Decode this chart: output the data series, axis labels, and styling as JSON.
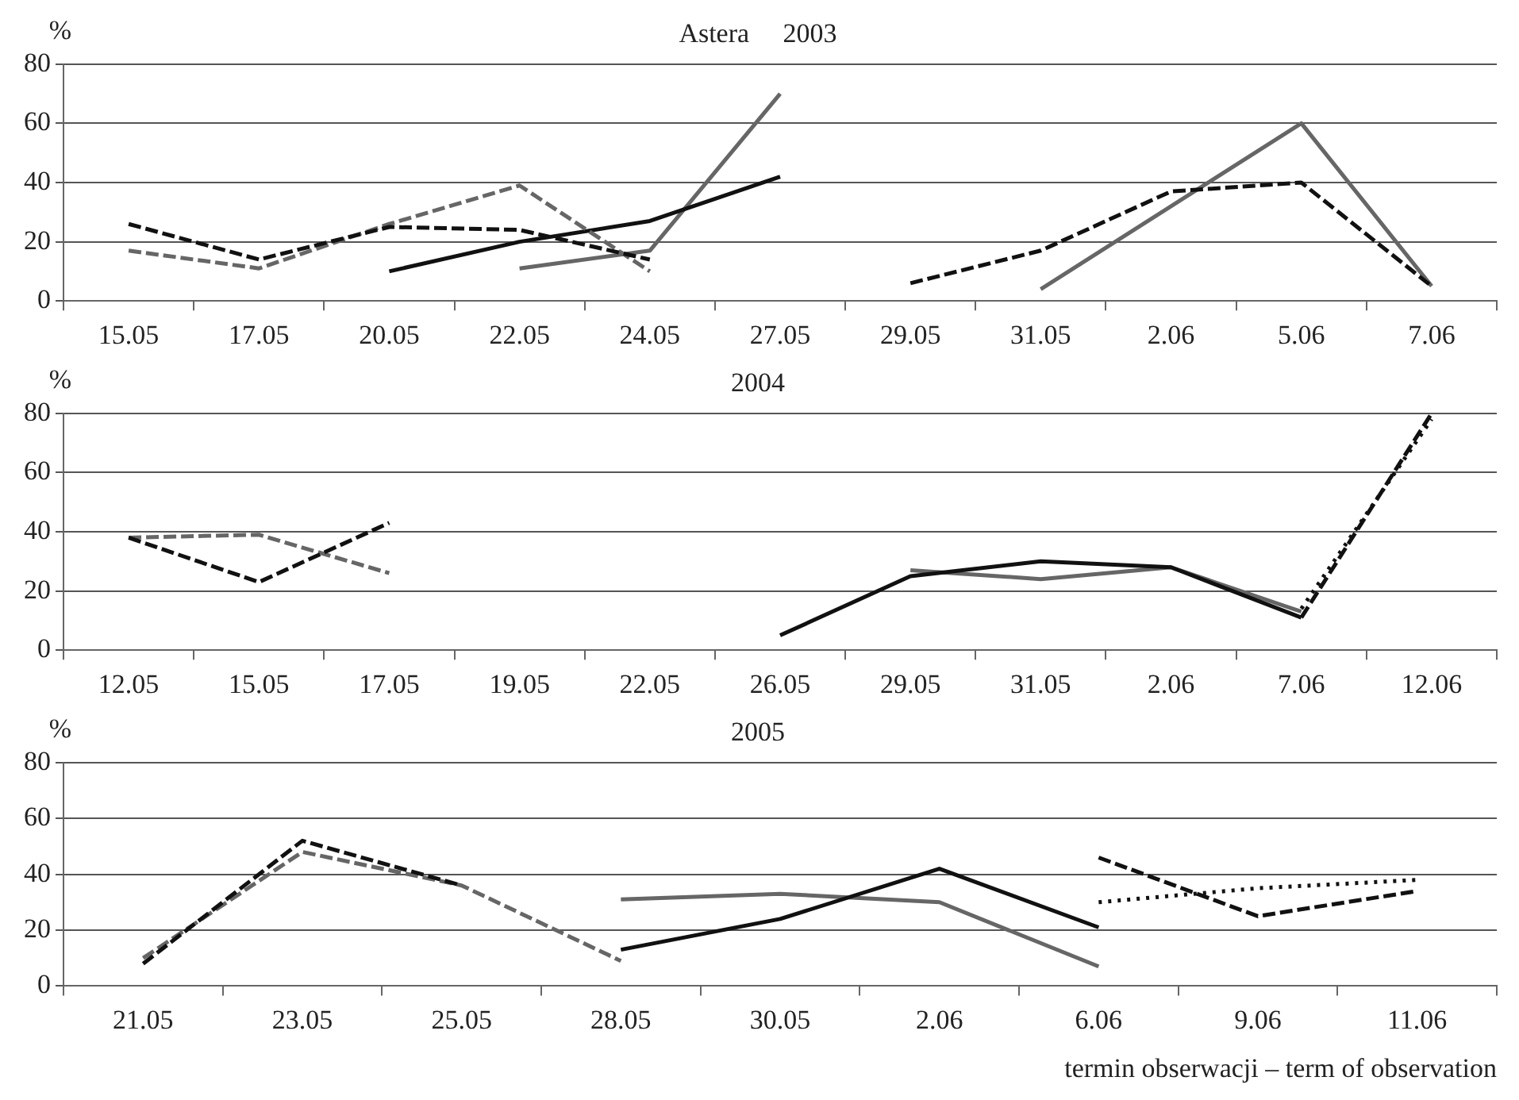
{
  "chart_data": [
    {
      "type": "line",
      "title": "Astera     2003",
      "ylabel": "%",
      "categories": [
        "15.05",
        "17.05",
        "20.05",
        "22.05",
        "24.05",
        "27.05",
        "29.05",
        "31.05",
        "2.06",
        "5.06",
        "7.06"
      ],
      "ylim": [
        0,
        80
      ],
      "yticks": [
        0,
        20,
        40,
        60,
        80
      ],
      "grid": "y",
      "legend": false,
      "marker": "none",
      "series": [
        {
          "color": "#111111",
          "line_style": "dashed",
          "values": [
            26,
            14,
            25,
            24,
            14,
            null,
            6,
            17,
            37,
            40,
            5
          ]
        },
        {
          "color": "#666666",
          "line_style": "dashed",
          "values": [
            17,
            11,
            26,
            39,
            10,
            null,
            null,
            null,
            null,
            null,
            null
          ]
        },
        {
          "color": "#111111",
          "line_style": "solid",
          "values": [
            null,
            null,
            10,
            20,
            27,
            42,
            null,
            null,
            null,
            null,
            null
          ]
        },
        {
          "color": "#666666",
          "line_style": "solid",
          "values": [
            null,
            null,
            null,
            11,
            17,
            70,
            null,
            4,
            32,
            60,
            5
          ]
        }
      ]
    },
    {
      "type": "line",
      "title": "2004",
      "ylabel": "%",
      "categories": [
        "12.05",
        "15.05",
        "17.05",
        "19.05",
        "22.05",
        "26.05",
        "29.05",
        "31.05",
        "2.06",
        "7.06",
        "12.06"
      ],
      "ylim": [
        0,
        80
      ],
      "yticks": [
        0,
        20,
        40,
        60,
        80
      ],
      "grid": "y",
      "legend": false,
      "marker": "none",
      "series": [
        {
          "color": "#111111",
          "line_style": "dashed",
          "values": [
            38,
            23,
            43,
            null,
            null,
            null,
            null,
            null,
            null,
            11,
            80
          ]
        },
        {
          "color": "#666666",
          "line_style": "dashed",
          "values": [
            38,
            39,
            26,
            null,
            null,
            null,
            null,
            null,
            null,
            null,
            null
          ]
        },
        {
          "color": "#111111",
          "line_style": "solid",
          "values": [
            null,
            null,
            null,
            null,
            null,
            5,
            25,
            30,
            28,
            11,
            null
          ]
        },
        {
          "color": "#666666",
          "line_style": "solid",
          "values": [
            null,
            null,
            null,
            null,
            null,
            null,
            27,
            24,
            28,
            13,
            null
          ]
        },
        {
          "color": "#111111",
          "line_style": "dotted",
          "values": [
            null,
            null,
            null,
            null,
            null,
            null,
            null,
            null,
            null,
            14,
            78
          ]
        }
      ]
    },
    {
      "type": "line",
      "title": "2005",
      "ylabel": "%",
      "xlabel": "termin obserwacji – term of observation",
      "categories": [
        "21.05",
        "23.05",
        "25.05",
        "28.05",
        "30.05",
        "2.06",
        "6.06",
        "9.06",
        "11.06"
      ],
      "ylim": [
        0,
        80
      ],
      "yticks": [
        0,
        20,
        40,
        60,
        80
      ],
      "grid": "y",
      "legend": false,
      "marker": "none",
      "series": [
        {
          "color": "#111111",
          "line_style": "dashed",
          "values": [
            8,
            52,
            36,
            null,
            null,
            null,
            46,
            25,
            34
          ]
        },
        {
          "color": "#666666",
          "line_style": "dashed",
          "values": [
            10,
            48,
            36,
            9,
            null,
            null,
            null,
            null,
            null
          ]
        },
        {
          "color": "#111111",
          "line_style": "solid",
          "values": [
            null,
            null,
            null,
            13,
            24,
            42,
            21,
            null,
            null
          ]
        },
        {
          "color": "#666666",
          "line_style": "solid",
          "values": [
            null,
            null,
            null,
            31,
            33,
            30,
            7,
            null,
            null
          ]
        },
        {
          "color": "#111111",
          "line_style": "dotted",
          "values": [
            null,
            null,
            null,
            null,
            null,
            null,
            30,
            35,
            38
          ]
        }
      ]
    }
  ]
}
